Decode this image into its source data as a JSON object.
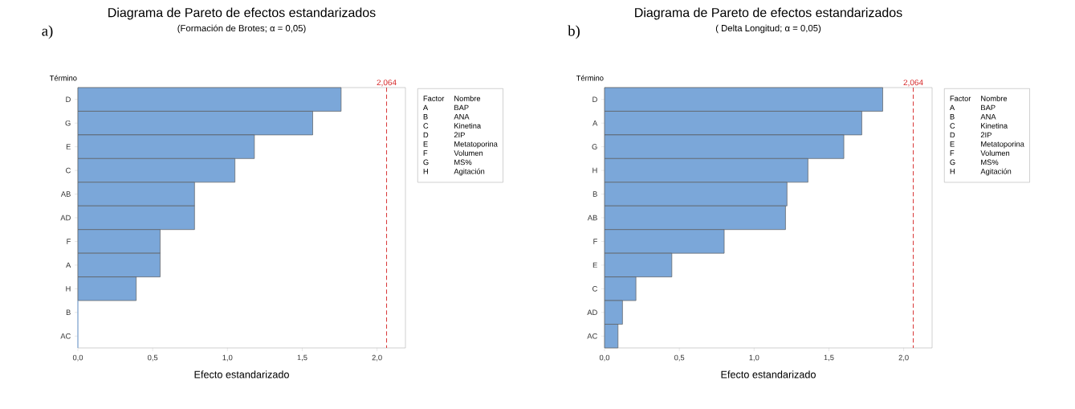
{
  "chart_data": [
    {
      "type": "bar",
      "orientation": "horizontal",
      "title": "Diagrama de Pareto de efectos estandarizados",
      "subtitle": "(Formación de Brotes; α = 0,05)",
      "xlabel": "Efecto estandarizado",
      "ylabel": "Término",
      "categories": [
        "D",
        "G",
        "E",
        "C",
        "AB",
        "AD",
        "F",
        "A",
        "H",
        "B",
        "AC"
      ],
      "values": [
        1.76,
        1.57,
        1.18,
        1.05,
        0.78,
        0.78,
        0.55,
        0.55,
        0.39,
        0,
        0
      ],
      "color": "#7ba7d9",
      "xlim": [
        0,
        2.19
      ],
      "xticks": [
        {
          "value": 0,
          "label": "0,0"
        },
        {
          "value": 0.5,
          "label": "0,5"
        },
        {
          "value": 1,
          "label": "1,0"
        },
        {
          "value": 1.5,
          "label": "1,5"
        },
        {
          "value": 2,
          "label": "2,0"
        }
      ],
      "ref_lines": [
        {
          "axis": "x",
          "value": 2.064,
          "label": "2,064",
          "color": "#d62728",
          "line_style": "dashed"
        }
      ],
      "annotations": [
        "a)",
        "Factor",
        "Nombre",
        "A",
        "BAP",
        "B",
        "ANA",
        "C",
        "Kinetina",
        "D",
        "2IP",
        "E",
        "Metatoporina",
        "F",
        "Volumen",
        "G",
        "MS%",
        "H",
        "Agitación"
      ]
    },
    {
      "type": "bar",
      "orientation": "horizontal",
      "title": "Diagrama de Pareto de efectos estandarizados",
      "subtitle": "( Delta Longitud; α = 0,05)",
      "xlabel": "Efecto estandarizado",
      "ylabel": "Término",
      "categories": [
        "D",
        "A",
        "G",
        "H",
        "B",
        "AB",
        "F",
        "E",
        "C",
        "AD",
        "AC"
      ],
      "values": [
        1.86,
        1.72,
        1.6,
        1.36,
        1.22,
        1.21,
        0.8,
        0.45,
        0.21,
        0.12,
        0.09
      ],
      "color": "#7ba7d9",
      "xlim": [
        0,
        2.19
      ],
      "xticks": [
        {
          "value": 0,
          "label": "0,0"
        },
        {
          "value": 0.5,
          "label": "0,5"
        },
        {
          "value": 1,
          "label": "1,0"
        },
        {
          "value": 1.5,
          "label": "1,5"
        },
        {
          "value": 2,
          "label": "2,0"
        }
      ],
      "ref_lines": [
        {
          "axis": "x",
          "value": 2.064,
          "label": "2,064",
          "color": "#d62728",
          "line_style": "dashed"
        }
      ],
      "annotations": [
        "b)",
        "Factor",
        "Nombre",
        "A",
        "BAP",
        "B",
        "ANA",
        "C",
        "Kinetina",
        "D",
        "2IP",
        "E",
        "Metatoporina",
        "F",
        "Volumen",
        "G",
        "MS%",
        "H",
        "Agitación"
      ]
    }
  ]
}
